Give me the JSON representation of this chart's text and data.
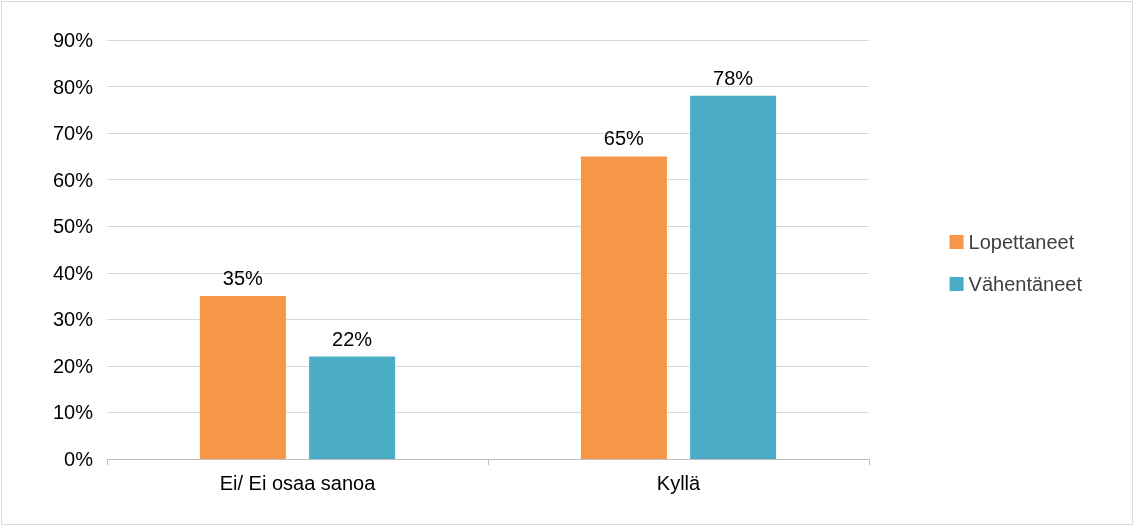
{
  "chart_data": {
    "type": "bar",
    "categories": [
      "Ei/ Ei osaa sanoa",
      "Kyllä"
    ],
    "series": [
      {
        "name": "Lopettaneet",
        "color": "#f79646",
        "values": [
          35,
          65
        ],
        "value_labels": [
          "35%",
          "65%"
        ]
      },
      {
        "name": "Vähentäneet",
        "color": "#4bacc6",
        "values": [
          22,
          78
        ],
        "value_labels": [
          "22%",
          "78%"
        ]
      }
    ],
    "ylim": [
      0,
      90
    ],
    "yticks": [
      {
        "value": 0,
        "label": "0%"
      },
      {
        "value": 10,
        "label": "10%"
      },
      {
        "value": 20,
        "label": "20%"
      },
      {
        "value": 30,
        "label": "30%"
      },
      {
        "value": 40,
        "label": "40%"
      },
      {
        "value": 50,
        "label": "50%"
      },
      {
        "value": 60,
        "label": "60%"
      },
      {
        "value": 70,
        "label": "70%"
      },
      {
        "value": 80,
        "label": "80%"
      },
      {
        "value": 90,
        "label": "90%"
      }
    ],
    "grid": "y",
    "legend": "right"
  }
}
